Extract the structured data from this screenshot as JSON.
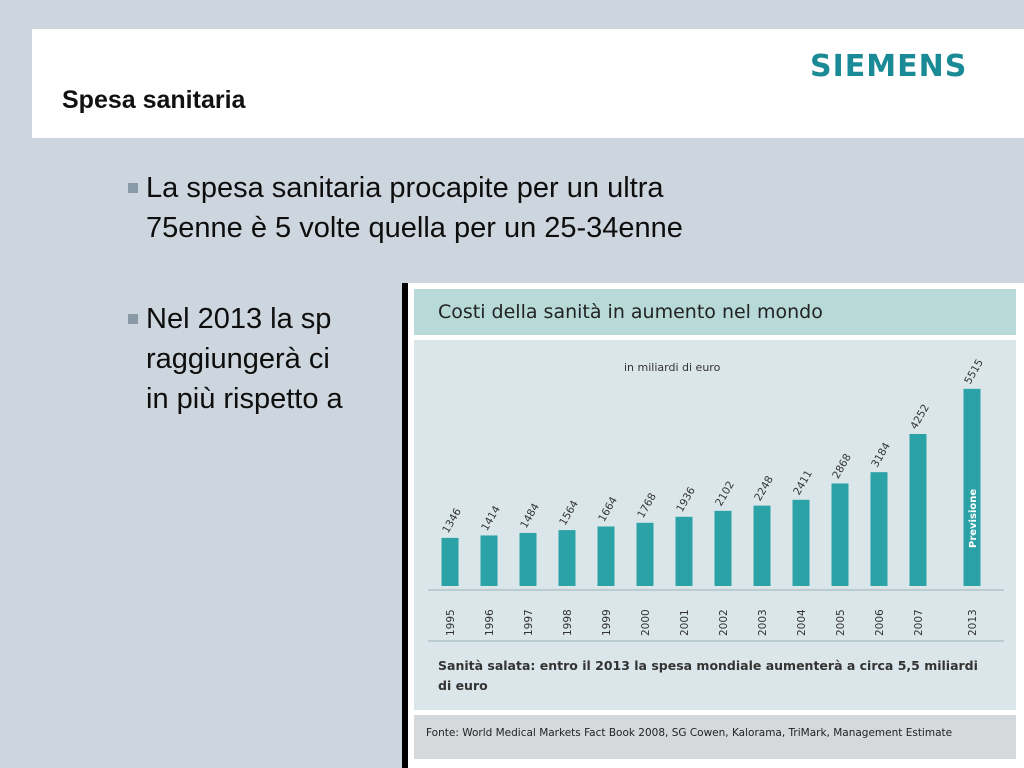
{
  "header": {
    "title": "Spesa sanitaria",
    "logo": "SIEMENS"
  },
  "bullets": [
    {
      "lines": [
        "La spesa sanitaria procapite per un ultra",
        "75enne è 5 volte quella per un 25-34enne"
      ]
    },
    {
      "lines": [
        "Nel 2013 la sp",
        "raggiungerà ci",
        "in più rispetto a"
      ]
    }
  ],
  "figure": {
    "title": "Costi della sanità in aumento nel mondo",
    "caption_lines": [
      "Sanità salata: entro il 2013 la spesa mondiale aumenterà a circa 5,5 miliardi",
      "di euro"
    ],
    "source": "Fonte: World Medical Markets Fact Book 2008, SG Cowen, Kalorama, TriMark, Management Estimate"
  },
  "colors": {
    "background": "#cdd6de",
    "logo": "#1a8a96",
    "bar": "#2ba3a6",
    "bullet_marker": "#8a99a6"
  },
  "chart_data": {
    "type": "bar",
    "title": "Costi della sanità in aumento nel mondo",
    "unit_label": "in miliardi di euro",
    "categories": [
      "1995",
      "1996",
      "1997",
      "1998",
      "1999",
      "2000",
      "2001",
      "2002",
      "2003",
      "2004",
      "2005",
      "2006",
      "2007",
      "2013"
    ],
    "values": [
      1346,
      1414,
      1484,
      1564,
      1664,
      1768,
      1936,
      2102,
      2248,
      2411,
      2868,
      3184,
      4252,
      5515
    ],
    "annotations": [
      {
        "category": "2013",
        "text": "Previsione"
      }
    ],
    "grid": false,
    "legend": "none"
  }
}
